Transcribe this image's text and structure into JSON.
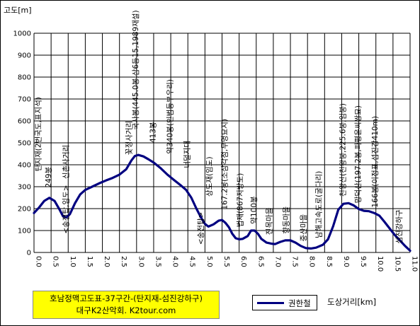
{
  "chart_data": {
    "type": "line",
    "ylabel": "고도[m]",
    "xlabel": "도상거리[km]",
    "xlim": [
      0,
      11
    ],
    "ylim": [
      0,
      1000
    ],
    "x_ticks": [
      "0.0",
      "0.5",
      "1.0",
      "1.5",
      "2.0",
      "2.5",
      "3.0",
      "3.5",
      "4.0",
      "4.5",
      "5.0",
      "5.5",
      "6.0",
      "6.5",
      "7.0",
      "7.5",
      "8.0",
      "8.5",
      "9.0",
      "9.5",
      "10.0",
      "10.5",
      "11.0"
    ],
    "y_ticks": [
      "0",
      "100",
      "200",
      "300",
      "400",
      "500",
      "600",
      "700",
      "800",
      "900",
      "1000"
    ],
    "legend": "권한철",
    "series": [
      {
        "name": "권한철",
        "color": "#000080",
        "points": [
          [
            0.0,
            180
          ],
          [
            0.15,
            205
          ],
          [
            0.3,
            235
          ],
          [
            0.45,
            249
          ],
          [
            0.6,
            235
          ],
          [
            0.75,
            195
          ],
          [
            0.85,
            165
          ],
          [
            0.95,
            160
          ],
          [
            1.05,
            175
          ],
          [
            1.2,
            225
          ],
          [
            1.35,
            265
          ],
          [
            1.5,
            285
          ],
          [
            1.7,
            300
          ],
          [
            1.9,
            315
          ],
          [
            2.1,
            328
          ],
          [
            2.3,
            340
          ],
          [
            2.5,
            355
          ],
          [
            2.7,
            380
          ],
          [
            2.85,
            420
          ],
          [
            2.95,
            440
          ],
          [
            3.05,
            445
          ],
          [
            3.2,
            438
          ],
          [
            3.35,
            425
          ],
          [
            3.5,
            410
          ],
          [
            3.7,
            385
          ],
          [
            3.9,
            355
          ],
          [
            4.1,
            330
          ],
          [
            4.3,
            305
          ],
          [
            4.45,
            285
          ],
          [
            4.6,
            250
          ],
          [
            4.75,
            200
          ],
          [
            4.9,
            155
          ],
          [
            5.0,
            130
          ],
          [
            5.1,
            118
          ],
          [
            5.25,
            128
          ],
          [
            5.4,
            145
          ],
          [
            5.5,
            148
          ],
          [
            5.6,
            135
          ],
          [
            5.7,
            115
          ],
          [
            5.8,
            85
          ],
          [
            5.9,
            65
          ],
          [
            6.0,
            60
          ],
          [
            6.1,
            62
          ],
          [
            6.25,
            75
          ],
          [
            6.35,
            100
          ],
          [
            6.45,
            100
          ],
          [
            6.55,
            85
          ],
          [
            6.65,
            62
          ],
          [
            6.8,
            45
          ],
          [
            6.95,
            40
          ],
          [
            7.05,
            38
          ],
          [
            7.2,
            48
          ],
          [
            7.35,
            55
          ],
          [
            7.5,
            55
          ],
          [
            7.65,
            45
          ],
          [
            7.8,
            30
          ],
          [
            7.95,
            20
          ],
          [
            8.1,
            18
          ],
          [
            8.25,
            22
          ],
          [
            8.45,
            35
          ],
          [
            8.6,
            60
          ],
          [
            8.75,
            120
          ],
          [
            8.9,
            195
          ],
          [
            9.05,
            222
          ],
          [
            9.2,
            225
          ],
          [
            9.35,
            215
          ],
          [
            9.5,
            198
          ],
          [
            9.65,
            190
          ],
          [
            9.8,
            188
          ],
          [
            9.95,
            180
          ],
          [
            10.1,
            168
          ],
          [
            10.25,
            140
          ],
          [
            10.4,
            110
          ],
          [
            10.55,
            80
          ],
          [
            10.7,
            55
          ],
          [
            10.85,
            30
          ],
          [
            11.0,
            8
          ]
        ]
      }
    ],
    "annotations": [
      {
        "label": "탄지재(2번국도,표지석)",
        "x": 0.2,
        "y": 370
      },
      {
        "label": "249봉",
        "x": 0.5,
        "y": 295
      },
      {
        "label": "신촌사거리",
        "x": 1.0,
        "y": 335
      },
      {
        "label": "<송전탑,임도>",
        "x": 1.0,
        "y": 85
      },
      {
        "label": "꽃정사거리",
        "x": 2.85,
        "y": 445
      },
      {
        "label": "국사봉(445.0봉,삼6등15,1989재설)",
        "x": 3.05,
        "y": 560
      },
      {
        "label": "413봉",
        "x": 3.55,
        "y": 500
      },
      {
        "label": "약340봉(인범등부우리)",
        "x": 4.05,
        "y": 450
      },
      {
        "label": "너덜지대",
        "x": 4.55,
        "y": 385
      },
      {
        "label": "<송전탑>",
        "x": 4.95,
        "y": 35
      },
      {
        "label": "상도재(임도)",
        "x": 5.2,
        "y": 255
      },
      {
        "label": "167.2봉(소삼각점,무명묘지)",
        "x": 5.65,
        "y": 195
      },
      {
        "label": "법재(867지방도)",
        "x": 6.1,
        "y": 115
      },
      {
        "label": "약100봉",
        "x": 6.5,
        "y": 130
      },
      {
        "label": "진목마을",
        "x": 6.95,
        "y": 80
      },
      {
        "label": "향동마을",
        "x": 7.45,
        "y": 85
      },
      {
        "label": "중산마을",
        "x": 7.95,
        "y": 50
      },
      {
        "label": "남해고속도로(굴다리)",
        "x": 8.4,
        "y": 65
      },
      {
        "label": "천왕산(천왕봉,225.6봉,임봉)",
        "x": 9.1,
        "y": 255
      },
      {
        "label": "망덕산(197.2봉,파평윤씨쌍묘)",
        "x": 9.55,
        "y": 225
      },
      {
        "label": "166봉(이정표,섬진강410m)",
        "x": 10.05,
        "y": 205
      },
      {
        "label": "섬진강하구",
        "x": 10.75,
        "y": 40
      }
    ]
  },
  "title_box": {
    "line1": "호남정맥고도표-37구간-(탄지재-섬진강하구)",
    "line2": "대구K2산악회. K2tour.com"
  }
}
